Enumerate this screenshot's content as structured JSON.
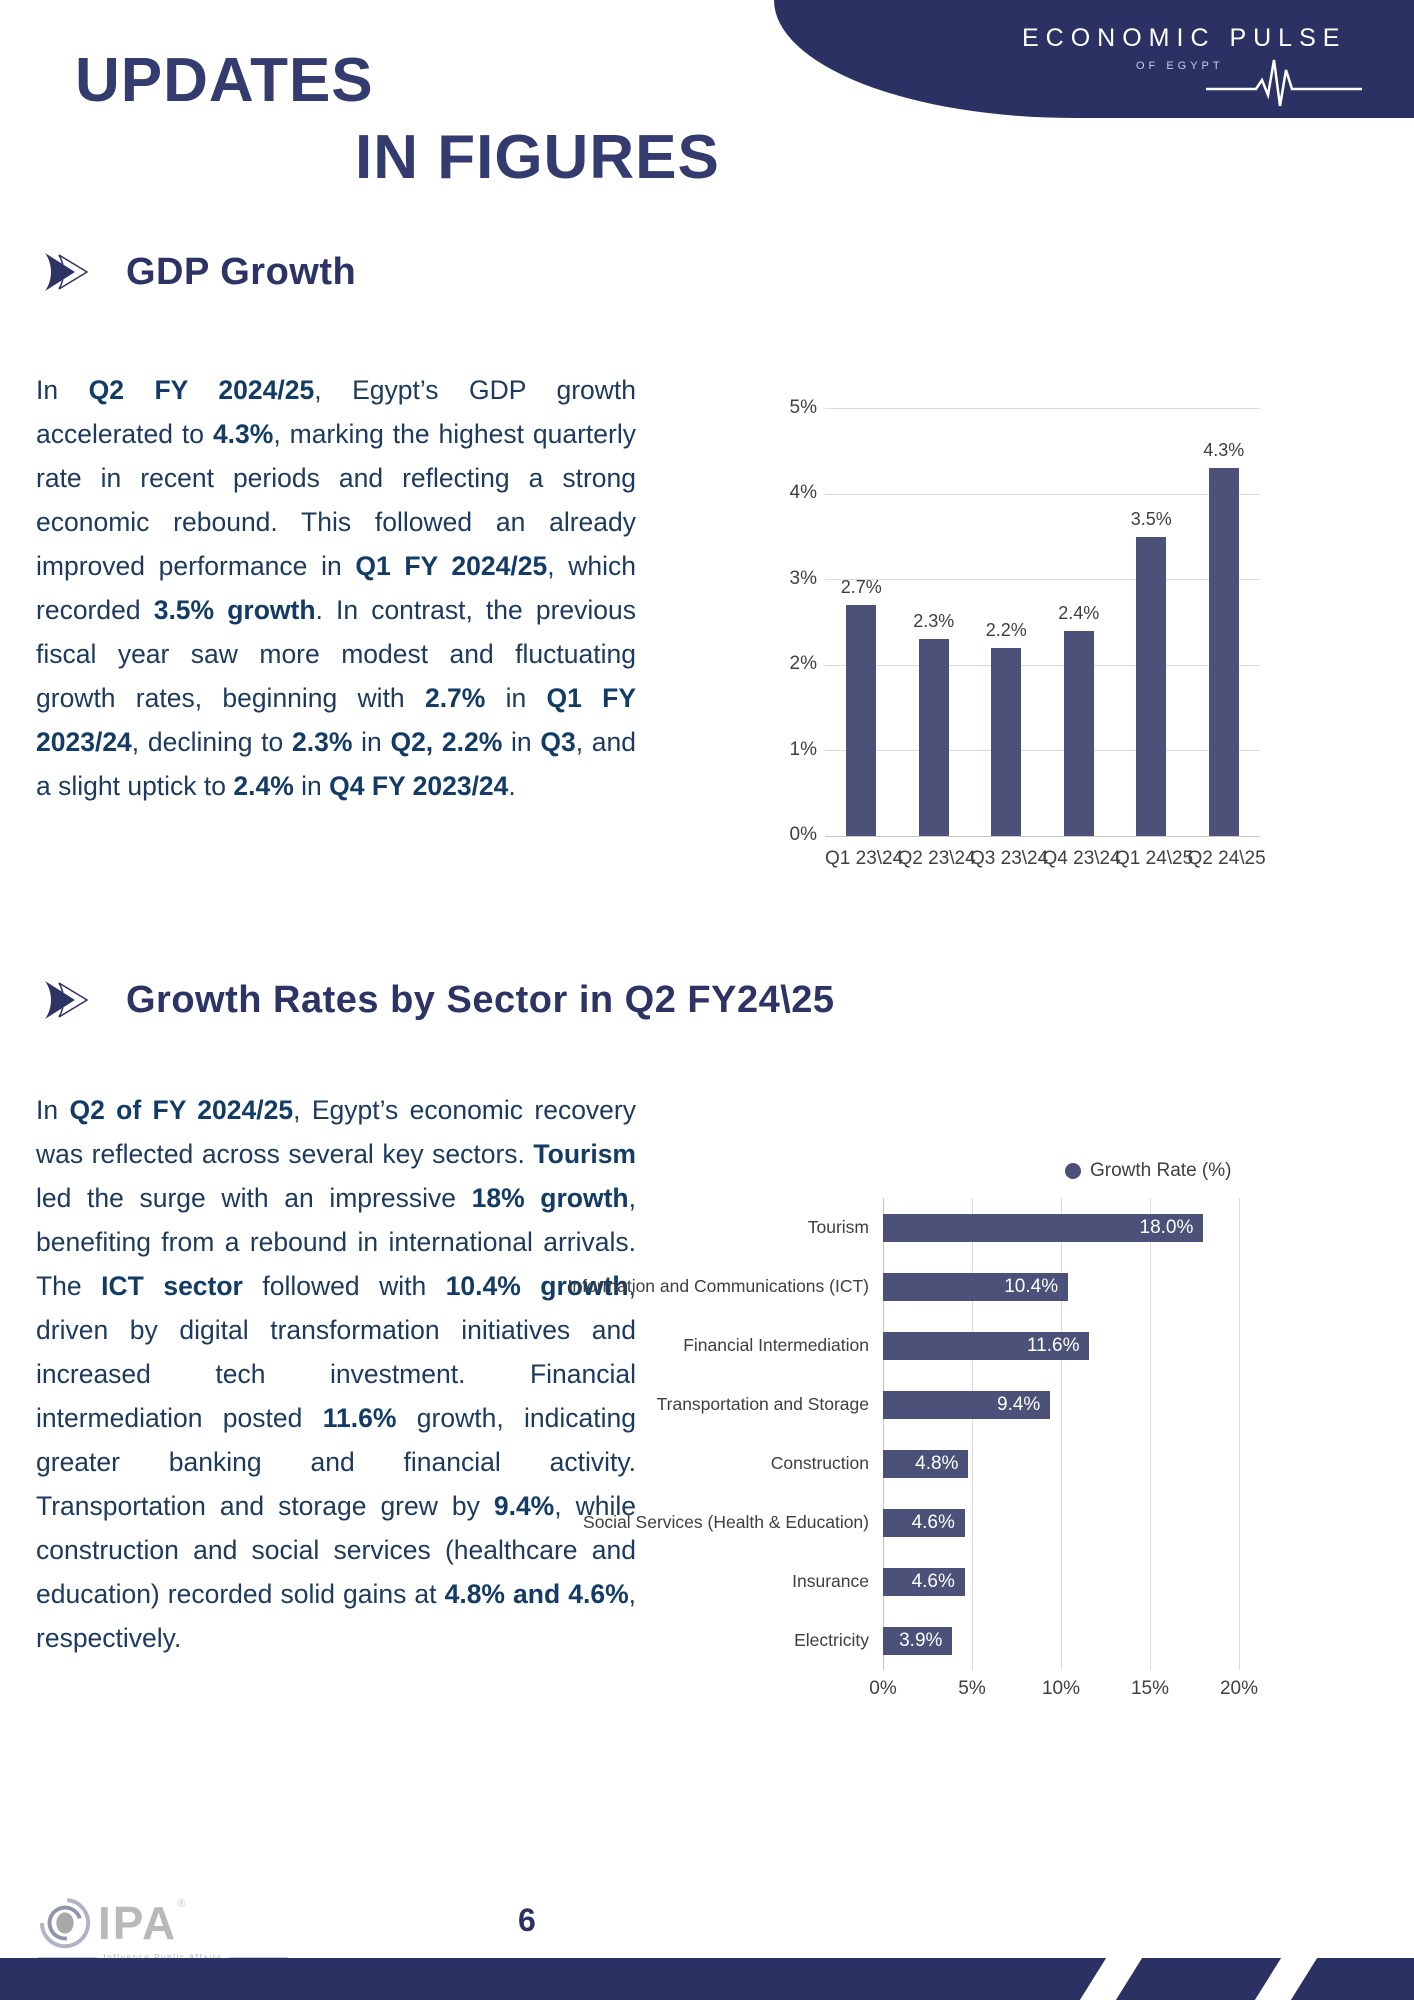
{
  "page": {
    "title_line1": "UPDATES",
    "title_line2": "IN FIGURES"
  },
  "brand": {
    "name": "ECONOMIC PULSE",
    "sub": "OF EGYPT"
  },
  "colors": {
    "navy": "#2b3163",
    "heading": "#2c3365",
    "body_text": "#1c3a5e",
    "bar": "#4b5179",
    "grid": "#dcdcdc",
    "chart_text": "#3f3f3f"
  },
  "section1": {
    "heading": "GDP Growth",
    "paragraph": [
      {
        "t": "In "
      },
      {
        "t": "Q2 FY 2024/25",
        "b": true
      },
      {
        "t": ", Egypt’s GDP growth accelerated to "
      },
      {
        "t": "4.3%",
        "b": true
      },
      {
        "t": ", marking the highest quarterly rate in recent periods and reflecting a strong economic rebound. This followed an already improved performance in "
      },
      {
        "t": "Q1 FY 2024/25",
        "b": true
      },
      {
        "t": ", which recorded "
      },
      {
        "t": "3.5% growth",
        "b": true
      },
      {
        "t": ". In contrast, the previous fiscal year saw more modest and fluctuating growth rates, beginning with "
      },
      {
        "t": "2.7%",
        "b": true
      },
      {
        "t": " in "
      },
      {
        "t": "Q1 FY 2023/24",
        "b": true
      },
      {
        "t": ", declining to "
      },
      {
        "t": "2.3%",
        "b": true
      },
      {
        "t": " in "
      },
      {
        "t": "Q2, 2.2%",
        "b": true
      },
      {
        "t": " in "
      },
      {
        "t": "Q3",
        "b": true
      },
      {
        "t": ", and a slight uptick to "
      },
      {
        "t": "2.4%",
        "b": true
      },
      {
        "t": " in "
      },
      {
        "t": "Q4 FY 2023/24",
        "b": true
      },
      {
        "t": "."
      }
    ]
  },
  "section2": {
    "heading": "Growth Rates by Sector in Q2 FY24\\25",
    "paragraph": [
      {
        "t": "In "
      },
      {
        "t": "Q2 of FY 2024/25",
        "b": true
      },
      {
        "t": ", Egypt’s economic recovery was reflected across several key sectors. "
      },
      {
        "t": "Tourism",
        "b": true
      },
      {
        "t": " led the surge with an impressive "
      },
      {
        "t": "18% growth",
        "b": true
      },
      {
        "t": ", benefiting from a rebound in international arrivals. The "
      },
      {
        "t": "ICT sector",
        "b": true
      },
      {
        "t": " followed with "
      },
      {
        "t": "10.4% growth",
        "b": true
      },
      {
        "t": ", driven by digital transformation initiatives and increased tech investment. Financial intermediation posted "
      },
      {
        "t": "11.6%",
        "b": true
      },
      {
        "t": " growth, indicating greater banking and financial activity. Transportation and storage grew by "
      },
      {
        "t": "9.4%",
        "b": true
      },
      {
        "t": ", while construction and social services (healthcare and education) recorded solid gains at "
      },
      {
        "t": "4.8% and 4.6%",
        "b": true
      },
      {
        "t": ", respectively."
      }
    ]
  },
  "chart_data": [
    {
      "type": "bar",
      "title": "",
      "categories": [
        "Q1 23\\24",
        "Q2 23\\24",
        "Q3 23\\24",
        "Q4 23\\24",
        "Q1 24\\25",
        "Q2 24\\25"
      ],
      "values": [
        2.7,
        2.3,
        2.2,
        2.4,
        3.5,
        4.3
      ],
      "value_labels": [
        "2.7%",
        "2.3%",
        "2.2%",
        "2.4%",
        "3.5%",
        "4.3%"
      ],
      "ylim": [
        0,
        5
      ],
      "yticks": [
        "0%",
        "1%",
        "2%",
        "3%",
        "4%",
        "5%"
      ],
      "grid": true,
      "legend_position": "none",
      "bar_color": "#4b5179",
      "grid_color": "#dcdcdc",
      "text_color": "#3f3f3f"
    },
    {
      "type": "bar",
      "orientation": "horizontal",
      "legend": "Growth Rate (%)",
      "legend_position": "top",
      "categories": [
        "Tourism",
        "Information and Communications (ICT)",
        "Financial Intermediation",
        "Transportation and Storage",
        "Construction",
        "Social Services (Health & Education)",
        "Insurance",
        "Electricity"
      ],
      "values": [
        18.0,
        10.4,
        11.6,
        9.4,
        4.8,
        4.6,
        4.6,
        3.9
      ],
      "value_labels": [
        "18.0%",
        "10.4%",
        "11.6%",
        "9.4%",
        "4.8%",
        "4.6%",
        "4.6%",
        "3.9%"
      ],
      "xlim": [
        0,
        20
      ],
      "xticks": [
        "0%",
        "5%",
        "10%",
        "15%",
        "20%"
      ],
      "grid": true,
      "bar_color": "#4b5179",
      "grid_color": "#dcdcdc",
      "text_color": "#3f3f3f"
    }
  ],
  "footer": {
    "logo_text": "IPA",
    "logo_reg": "®",
    "logo_sub": "Influence Public Affairs",
    "page_number": "6"
  }
}
